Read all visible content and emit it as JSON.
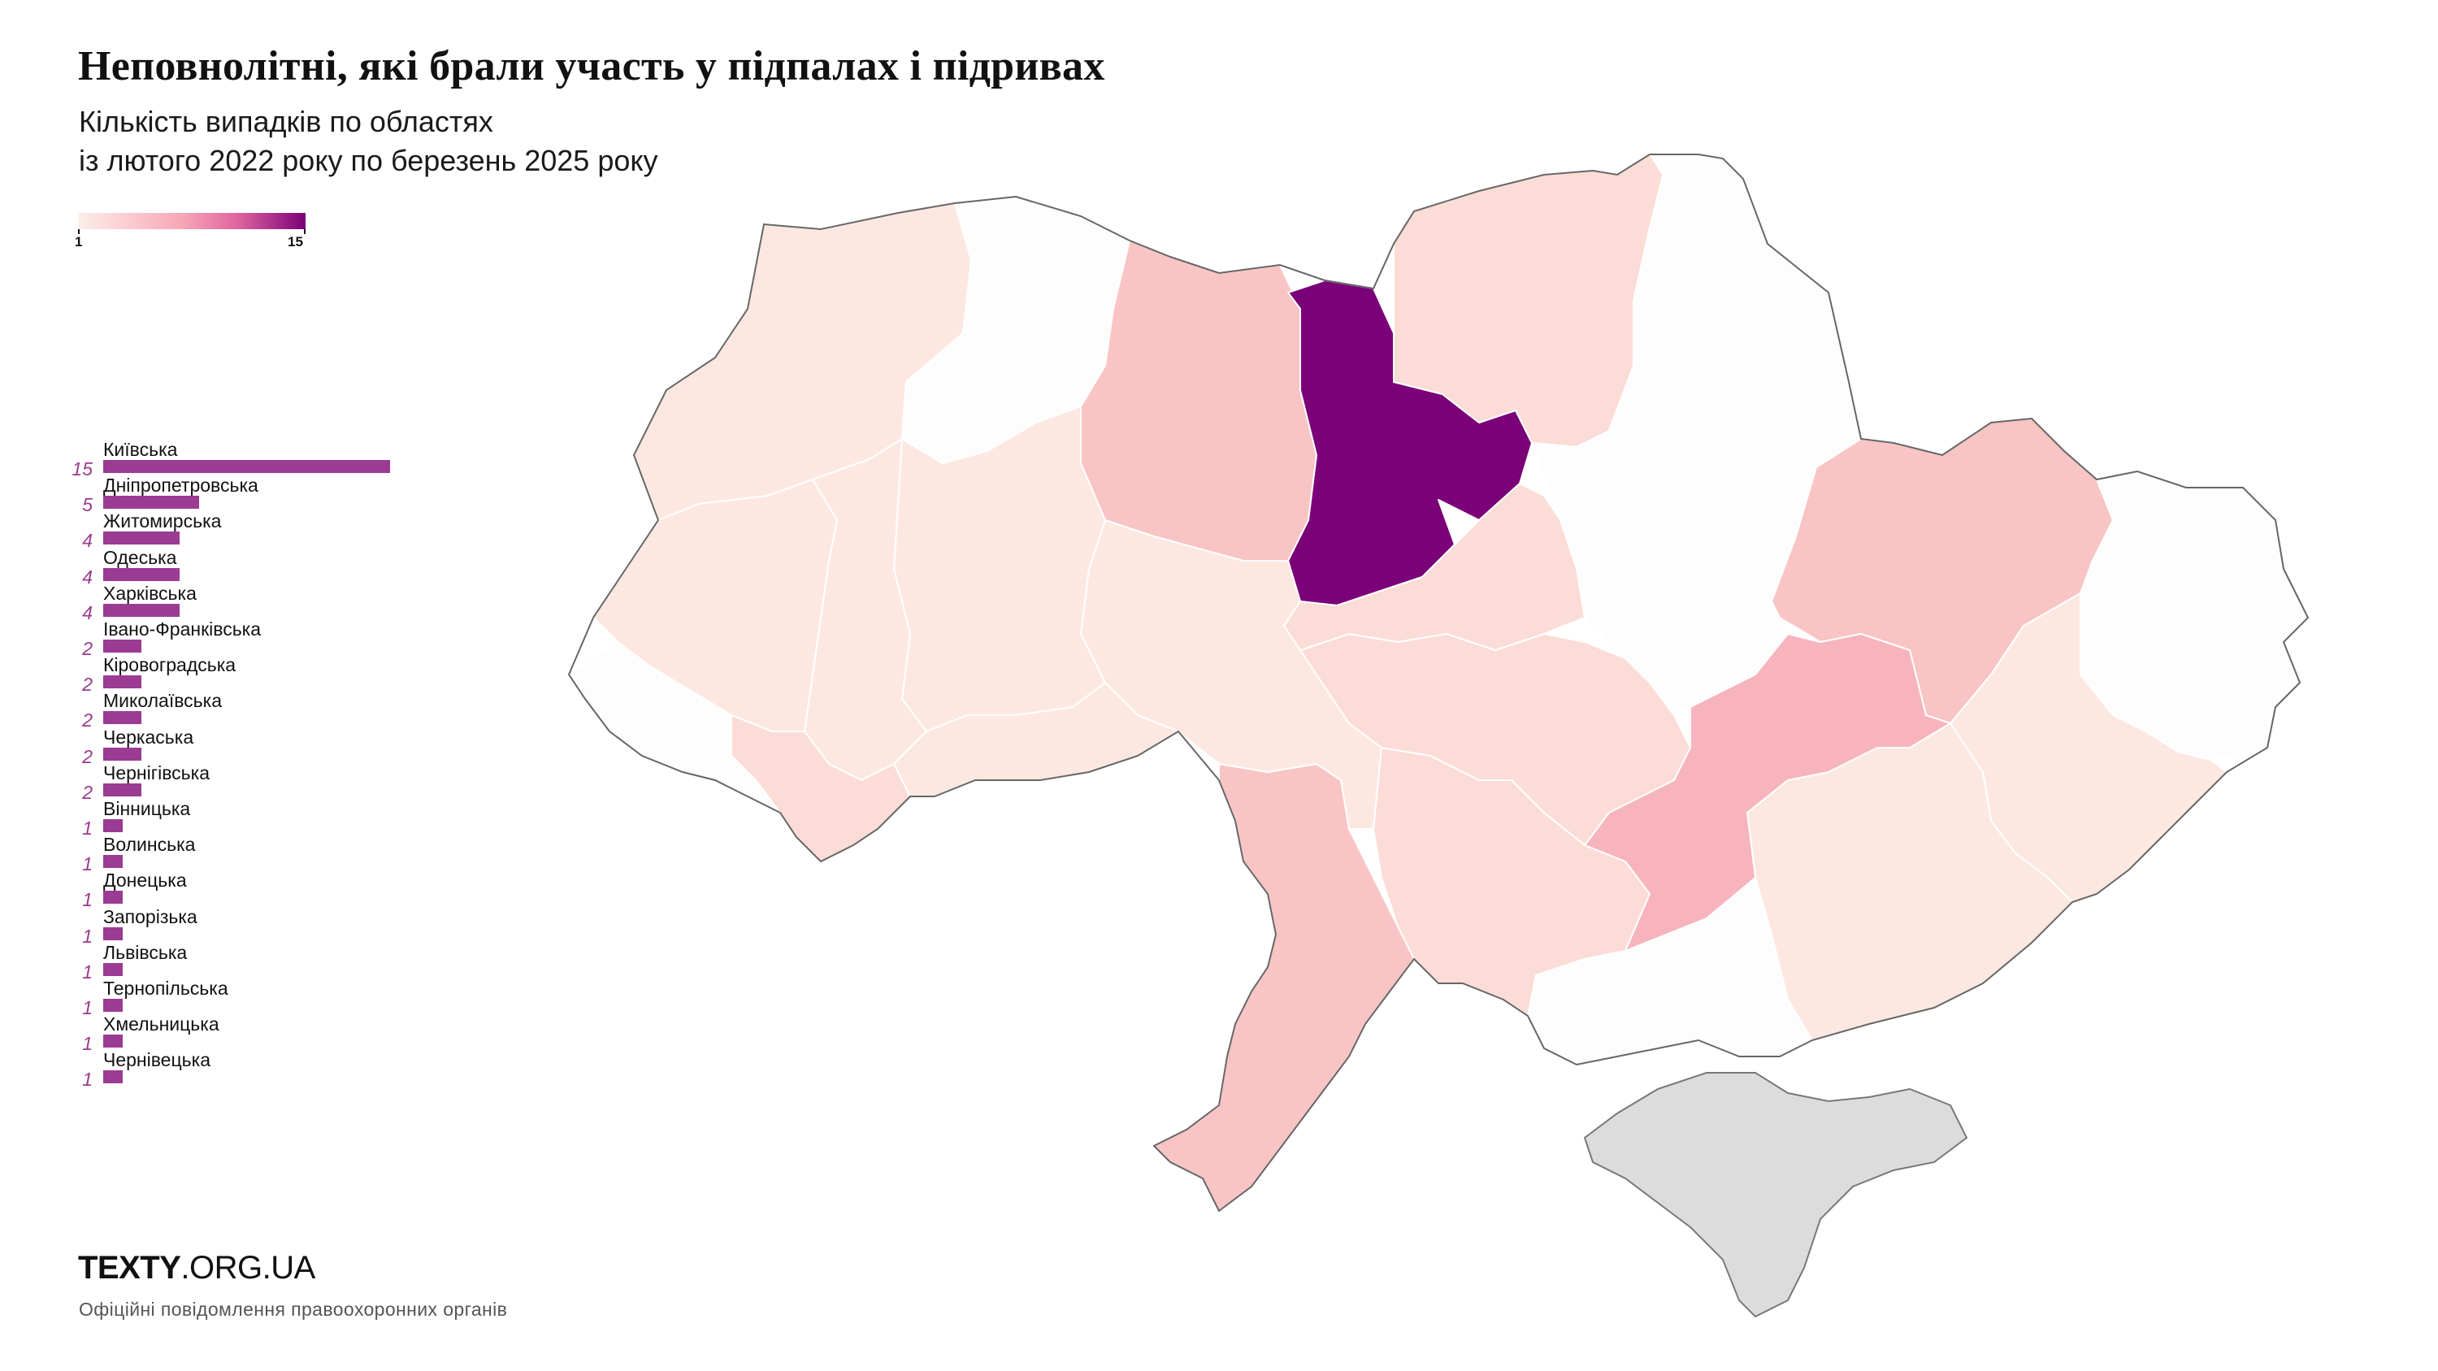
{
  "title": "Неповнолітні, які брали участь у підпалах і підривах",
  "subtitle": {
    "line1": "Кількість випадків по областях",
    "line2": "із лютого 2022 року по березень 2025 року"
  },
  "legend": {
    "min_label": "1",
    "max_label": "15",
    "min": 1,
    "max": 15,
    "colors": [
      "#fdeee9",
      "#f7a8b6",
      "#e064a0",
      "#7a0177"
    ]
  },
  "map": {
    "regions": [
      {
        "name": "Волинська",
        "value": 1,
        "color": "#fde8e1"
      },
      {
        "name": "Рівненська",
        "value": 0,
        "color": "#fdfdfd"
      },
      {
        "name": "Житомирська",
        "value": 4,
        "color": "#f8c4c4"
      },
      {
        "name": "Київська",
        "value": 15,
        "color": "#7a0177"
      },
      {
        "name": "Чернігівська",
        "value": 2,
        "color": "#fcdcd6"
      },
      {
        "name": "Сумська",
        "value": 0,
        "color": "#fdfdfd"
      },
      {
        "name": "Харківська",
        "value": 4,
        "color": "#f8c4c4"
      },
      {
        "name": "Луганська",
        "value": 0,
        "color": "#fdfdfd"
      },
      {
        "name": "Донецька",
        "value": 1,
        "color": "#fde8e1"
      },
      {
        "name": "Запорізька",
        "value": 1,
        "color": "#fde8e1"
      },
      {
        "name": "Херсонська",
        "value": 0,
        "color": "#fdfdfd"
      },
      {
        "name": "Миколаївська",
        "value": 2,
        "color": "#fcdcd6"
      },
      {
        "name": "Одеська",
        "value": 4,
        "color": "#f8c4c4"
      },
      {
        "name": "Кіровоградська",
        "value": 2,
        "color": "#fcdcd6"
      },
      {
        "name": "Черкаська",
        "value": 2,
        "color": "#fcdcd6"
      },
      {
        "name": "Полтавська",
        "value": 0,
        "color": "#fdfdfd"
      },
      {
        "name": "Дніпропетровська",
        "value": 5,
        "color": "#f7b4bd"
      },
      {
        "name": "Вінницька",
        "value": 1,
        "color": "#fde8e1"
      },
      {
        "name": "Хмельницька",
        "value": 1,
        "color": "#fde8e1"
      },
      {
        "name": "Тернопільська",
        "value": 1,
        "color": "#fde8e1"
      },
      {
        "name": "Львівська",
        "value": 1,
        "color": "#fde8e1"
      },
      {
        "name": "Івано-Франківська",
        "value": 2,
        "color": "#fcdcd6"
      },
      {
        "name": "Закарпатська",
        "value": 0,
        "color": "#fdfdfd"
      },
      {
        "name": "Чернівецька",
        "value": 1,
        "color": "#fde8e1"
      },
      {
        "name": "Крим",
        "value": null,
        "color": "#dcdcdc"
      }
    ]
  },
  "chart_data": {
    "type": "bar",
    "orientation": "horizontal",
    "title": "Неповнолітні, які брали участь у підпалах і підривах",
    "subtitle": "Кількість випадків по областях із лютого 2022 року по березень 2025 року",
    "categories": [
      "Київська",
      "Дніпропетровська",
      "Житомирська",
      "Одеська",
      "Харківська",
      "Івано-Франківська",
      "Кіровоградська",
      "Миколаївська",
      "Черкаська",
      "Чернігівська",
      "Вінницька",
      "Волинська",
      "Донецька",
      "Запорізька",
      "Львівська",
      "Тернопільська",
      "Хмельницька",
      "Чернівецька"
    ],
    "values": [
      15,
      5,
      4,
      4,
      4,
      2,
      2,
      2,
      2,
      2,
      1,
      1,
      1,
      1,
      1,
      1,
      1,
      1
    ],
    "bar_color": "#9c3b93"
  },
  "brand": {
    "bold": "TEXTY",
    "rest": ".ORG.UA"
  },
  "source": "Офіційні повідомлення правоохоронних органів"
}
